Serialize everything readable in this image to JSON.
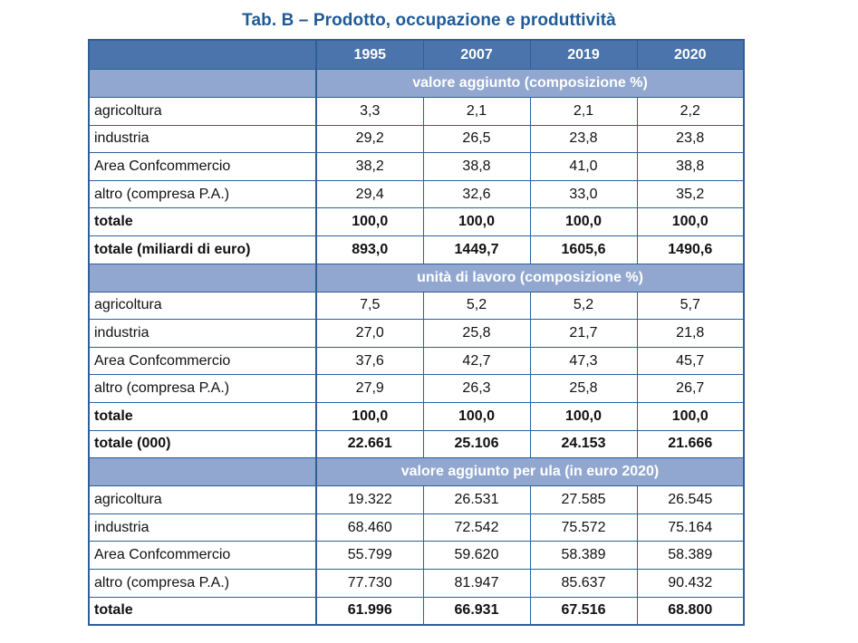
{
  "title": "Tab. B – Prodotto, occupazione e produttività",
  "years": [
    "1995",
    "2007",
    "2019",
    "2020"
  ],
  "sections": [
    {
      "heading": "valore aggiunto (composizione %)",
      "rows": [
        {
          "label": "agricoltura",
          "values": [
            "3,3",
            "2,1",
            "2,1",
            "2,2"
          ],
          "bold": false
        },
        {
          "label": "industria",
          "values": [
            "29,2",
            "26,5",
            "23,8",
            "23,8"
          ],
          "bold": false
        },
        {
          "label": "Area Confcommercio",
          "values": [
            "38,2",
            "38,8",
            "41,0",
            "38,8"
          ],
          "bold": false
        },
        {
          "label": "altro (compresa P.A.)",
          "values": [
            "29,4",
            "32,6",
            "33,0",
            "35,2"
          ],
          "bold": false
        },
        {
          "label": "totale",
          "values": [
            "100,0",
            "100,0",
            "100,0",
            "100,0"
          ],
          "bold": true
        },
        {
          "label": "totale (miliardi di euro)",
          "values": [
            "893,0",
            "1449,7",
            "1605,6",
            "1490,6"
          ],
          "bold": true
        }
      ]
    },
    {
      "heading": "unità di lavoro (composizione %)",
      "rows": [
        {
          "label": "agricoltura",
          "values": [
            "7,5",
            "5,2",
            "5,2",
            "5,7"
          ],
          "bold": false
        },
        {
          "label": "industria",
          "values": [
            "27,0",
            "25,8",
            "21,7",
            "21,8"
          ],
          "bold": false
        },
        {
          "label": "Area Confcommercio",
          "values": [
            "37,6",
            "42,7",
            "47,3",
            "45,7"
          ],
          "bold": false
        },
        {
          "label": "altro (compresa P.A.)",
          "values": [
            "27,9",
            "26,3",
            "25,8",
            "26,7"
          ],
          "bold": false
        },
        {
          "label": "totale",
          "values": [
            "100,0",
            "100,0",
            "100,0",
            "100,0"
          ],
          "bold": true
        },
        {
          "label": "totale (000)",
          "values": [
            "22.661",
            "25.106",
            "24.153",
            "21.666"
          ],
          "bold": true
        }
      ]
    },
    {
      "heading": "valore aggiunto per ula (in euro 2020)",
      "rows": [
        {
          "label": "agricoltura",
          "values": [
            "19.322",
            "26.531",
            "27.585",
            "26.545"
          ],
          "bold": false
        },
        {
          "label": "industria",
          "values": [
            "68.460",
            "72.542",
            "75.572",
            "75.164"
          ],
          "bold": false
        },
        {
          "label": "Area Confcommercio",
          "values": [
            "55.799",
            "59.620",
            "58.389",
            "58.389"
          ],
          "bold": false
        },
        {
          "label": "altro (compresa P.A.)",
          "values": [
            "77.730",
            "81.947",
            "85.637",
            "90.432"
          ],
          "bold": false
        },
        {
          "label": "totale",
          "values": [
            "61.996",
            "66.931",
            "67.516",
            "68.800"
          ],
          "bold": true
        }
      ]
    }
  ]
}
